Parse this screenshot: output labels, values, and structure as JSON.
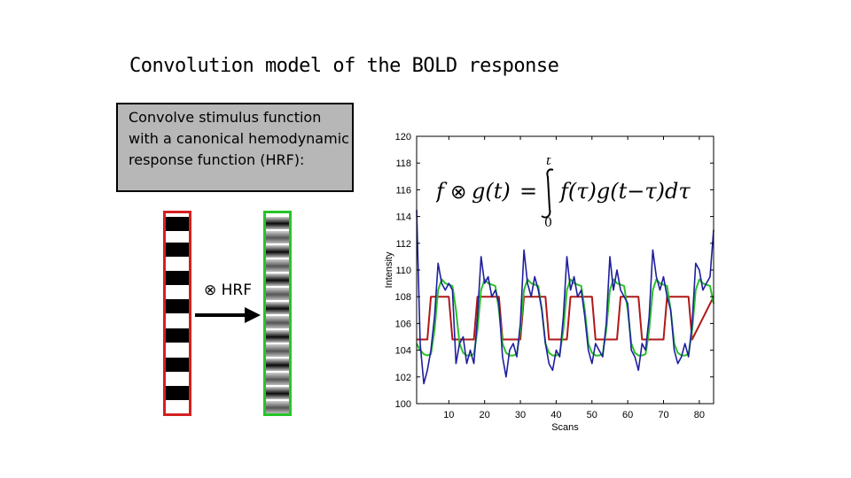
{
  "slide": {
    "title": "Convolution model of the BOLD response",
    "callout": "Convolve stimulus function with a canonical hemodynamic response function (HRF):",
    "hrf_label": "⊗ HRF",
    "formula": {
      "lhs_f": "f",
      "lhs_op": "⊗",
      "lhs_g": "g(t)",
      "equals": "=",
      "upper": "t",
      "lower": "0",
      "integrand": "f(τ)g(t−τ)dτ"
    }
  },
  "colors": {
    "stimulus_strip": "#d42020",
    "response_strip": "#27c42a",
    "callout_bg": "#b7b7b7",
    "measured": "#1f1f9e",
    "boxcar": "#b01818",
    "convolved": "#2bc02b"
  },
  "chart_data": {
    "type": "line",
    "title": "",
    "xlabel": "Scans",
    "ylabel": "Intensity",
    "xlim": [
      1,
      84
    ],
    "ylim": [
      100,
      120
    ],
    "xticks": [
      10,
      20,
      30,
      40,
      50,
      60,
      70,
      80
    ],
    "yticks": [
      100,
      102,
      104,
      106,
      108,
      110,
      112,
      114,
      116,
      118,
      120
    ],
    "grid": false,
    "box": true,
    "series": [
      {
        "name": "",
        "color": "#b01818",
        "role": "stimulus boxcar",
        "x": [
          1,
          4,
          5,
          10,
          11,
          17,
          18,
          24,
          25,
          30,
          31,
          37,
          38,
          43,
          44,
          50,
          51,
          57,
          58,
          63,
          64,
          70,
          71,
          77,
          78,
          84
        ],
        "y": [
          104.8,
          104.8,
          108,
          108,
          104.8,
          104.8,
          108,
          108,
          104.8,
          104.8,
          108,
          108,
          104.8,
          104.8,
          108,
          108,
          104.8,
          104.8,
          108,
          108,
          104.8,
          104.8,
          108,
          108,
          104.8,
          108
        ]
      },
      {
        "name": "",
        "color": "#2bc02b",
        "role": "convolved prediction",
        "x": [
          1,
          2,
          3,
          4,
          5,
          6,
          7,
          8,
          9,
          10,
          11,
          12,
          13,
          14,
          15,
          16,
          17,
          18,
          19,
          20,
          21,
          22,
          23,
          24,
          25,
          26,
          27,
          28,
          29,
          30,
          31,
          32,
          33,
          34,
          35,
          36,
          37,
          38,
          39,
          40,
          41,
          42,
          43,
          44,
          45,
          46,
          47,
          48,
          49,
          50,
          51,
          52,
          53,
          54,
          55,
          56,
          57,
          58,
          59,
          60,
          61,
          62,
          63,
          64,
          65,
          66,
          67,
          68,
          69,
          70,
          71,
          72,
          73,
          74,
          75,
          76,
          77,
          78,
          79,
          80,
          81,
          82,
          83,
          84
        ],
        "y": [
          104.5,
          104.0,
          103.7,
          103.6,
          103.7,
          105.5,
          108.5,
          109.3,
          109.0,
          108.9,
          108.8,
          107.0,
          104.5,
          103.8,
          103.6,
          103.6,
          103.7,
          105.5,
          108.5,
          109.3,
          109.0,
          108.9,
          108.8,
          107.0,
          104.5,
          103.8,
          103.6,
          103.6,
          103.7,
          105.5,
          108.5,
          109.3,
          109.0,
          108.9,
          108.8,
          107.0,
          104.5,
          103.8,
          103.6,
          103.6,
          103.7,
          105.5,
          108.5,
          109.3,
          109.0,
          108.9,
          108.8,
          107.0,
          104.5,
          103.8,
          103.6,
          103.6,
          103.7,
          105.5,
          108.5,
          109.3,
          109.0,
          108.9,
          108.8,
          107.0,
          104.5,
          103.8,
          103.6,
          103.6,
          103.7,
          105.5,
          108.5,
          109.3,
          109.0,
          108.9,
          108.8,
          107.0,
          104.5,
          103.8,
          103.6,
          103.6,
          103.7,
          105.5,
          108.5,
          109.3,
          109.0,
          108.9,
          108.8,
          107.5
        ]
      },
      {
        "name": "",
        "color": "#1f1f9e",
        "role": "measured signal",
        "x": [
          1,
          2,
          3,
          4,
          5,
          6,
          7,
          8,
          9,
          10,
          11,
          12,
          13,
          14,
          15,
          16,
          17,
          18,
          19,
          20,
          21,
          22,
          23,
          24,
          25,
          26,
          27,
          28,
          29,
          30,
          31,
          32,
          33,
          34,
          35,
          36,
          37,
          38,
          39,
          40,
          41,
          42,
          43,
          44,
          45,
          46,
          47,
          48,
          49,
          50,
          51,
          52,
          53,
          54,
          55,
          56,
          57,
          58,
          59,
          60,
          61,
          62,
          63,
          64,
          65,
          66,
          67,
          68,
          69,
          70,
          71,
          72,
          73,
          74,
          75,
          76,
          77,
          78,
          79,
          80,
          81,
          82,
          83,
          84
        ],
        "y": [
          114.5,
          104.5,
          101.5,
          102.5,
          104.0,
          106.5,
          110.5,
          109.0,
          108.5,
          109.0,
          108.5,
          103.0,
          104.5,
          105.0,
          103.0,
          104.0,
          103.0,
          106.5,
          111.0,
          109.0,
          109.5,
          108.0,
          108.5,
          107.5,
          103.5,
          102.0,
          104.0,
          104.5,
          103.5,
          106.0,
          111.5,
          109.0,
          108.0,
          109.5,
          108.5,
          107.0,
          104.5,
          103.0,
          102.5,
          104.0,
          103.5,
          106.5,
          111.0,
          108.5,
          109.5,
          108.0,
          108.5,
          106.5,
          104.0,
          103.0,
          104.5,
          104.0,
          103.5,
          106.0,
          111.0,
          108.5,
          110.0,
          108.5,
          108.0,
          107.5,
          104.0,
          103.5,
          102.5,
          104.5,
          104.0,
          106.5,
          111.5,
          109.5,
          108.5,
          109.5,
          108.0,
          107.0,
          104.0,
          103.0,
          103.5,
          104.5,
          103.5,
          106.0,
          110.5,
          110.0,
          108.5,
          109.0,
          109.5,
          113.0
        ]
      }
    ]
  }
}
